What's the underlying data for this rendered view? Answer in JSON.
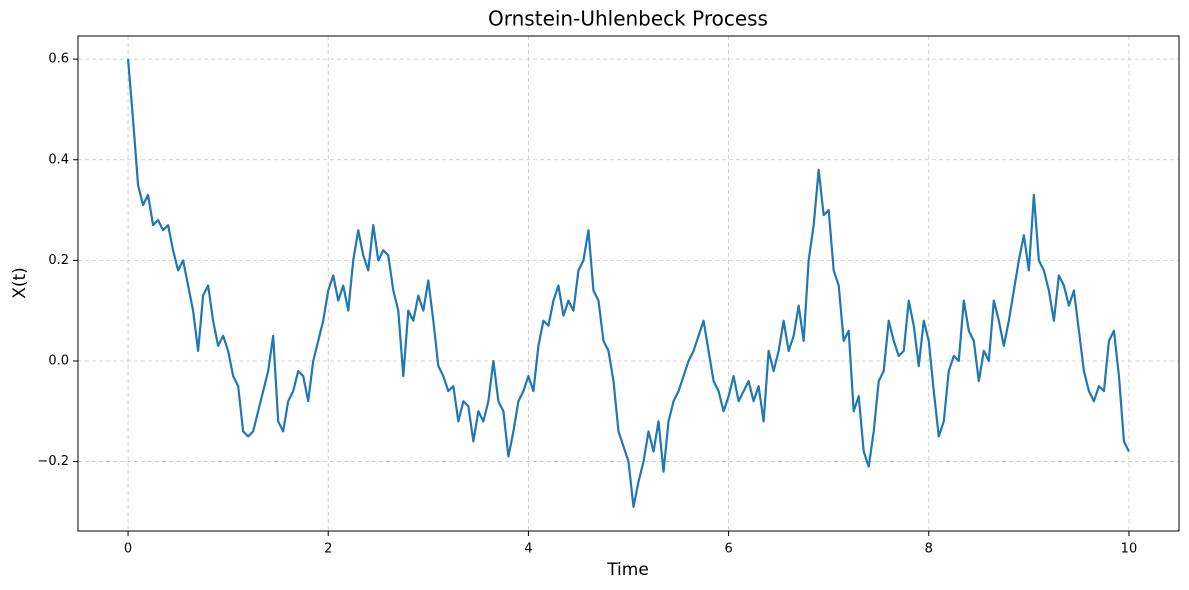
{
  "chart_data": {
    "type": "line",
    "title": "Ornstein-Uhlenbeck Process",
    "xlabel": "Time",
    "ylabel": "X(t)",
    "xlim": [
      -0.5,
      10.5
    ],
    "ylim": [
      -0.338,
      0.646
    ],
    "xticks": [
      0,
      2,
      4,
      6,
      8,
      10
    ],
    "yticks": [
      {
        "value": -0.2,
        "label": "−0.2"
      },
      {
        "value": 0,
        "label": "0.0"
      },
      0.2,
      0.4,
      0.6
    ],
    "grid": true,
    "x": [
      0,
      0.05,
      0.1,
      0.15,
      0.2,
      0.25,
      0.3,
      0.35,
      0.4,
      0.45,
      0.5,
      0.55,
      0.6,
      0.65,
      0.7,
      0.75,
      0.8,
      0.85,
      0.9,
      0.95,
      1,
      1.05,
      1.1,
      1.15,
      1.2,
      1.25,
      1.3,
      1.35,
      1.4,
      1.45,
      1.5,
      1.55,
      1.6,
      1.65,
      1.7,
      1.75,
      1.8,
      1.85,
      1.9,
      1.95,
      2,
      2.05,
      2.1,
      2.15,
      2.2,
      2.25,
      2.3,
      2.35,
      2.4,
      2.45,
      2.5,
      2.55,
      2.6,
      2.65,
      2.7,
      2.75,
      2.8,
      2.85,
      2.9,
      2.95,
      3,
      3.05,
      3.1,
      3.15,
      3.2,
      3.25,
      3.3,
      3.35,
      3.4,
      3.45,
      3.5,
      3.55,
      3.6,
      3.65,
      3.7,
      3.75,
      3.8,
      3.85,
      3.9,
      3.95,
      4,
      4.05,
      4.1,
      4.15,
      4.2,
      4.25,
      4.3,
      4.35,
      4.4,
      4.45,
      4.5,
      4.55,
      4.6,
      4.65,
      4.7,
      4.75,
      4.8,
      4.85,
      4.9,
      4.95,
      5,
      5.05,
      5.1,
      5.15,
      5.2,
      5.25,
      5.3,
      5.35,
      5.4,
      5.45,
      5.5,
      5.55,
      5.6,
      5.65,
      5.7,
      5.75,
      5.8,
      5.85,
      5.9,
      5.95,
      6,
      6.05,
      6.1,
      6.15,
      6.2,
      6.25,
      6.3,
      6.35,
      6.4,
      6.45,
      6.5,
      6.55,
      6.6,
      6.65,
      6.7,
      6.75,
      6.8,
      6.85,
      6.9,
      6.95,
      7,
      7.05,
      7.1,
      7.15,
      7.2,
      7.25,
      7.3,
      7.35,
      7.4,
      7.45,
      7.5,
      7.55,
      7.6,
      7.65,
      7.7,
      7.75,
      7.8,
      7.85,
      7.9,
      7.95,
      8,
      8.05,
      8.1,
      8.15,
      8.2,
      8.25,
      8.3,
      8.35,
      8.4,
      8.45,
      8.5,
      8.55,
      8.6,
      8.65,
      8.7,
      8.75,
      8.8,
      8.85,
      8.9,
      8.95,
      9,
      9.05,
      9.1,
      9.15,
      9.2,
      9.25,
      9.3,
      9.35,
      9.4,
      9.45,
      9.5,
      9.55,
      9.6,
      9.65,
      9.7,
      9.75,
      9.8,
      9.85,
      9.9,
      9.95,
      10
    ],
    "series": [
      {
        "color": "#1f77b4",
        "values": [
          0.6,
          0.48,
          0.35,
          0.31,
          0.33,
          0.27,
          0.28,
          0.26,
          0.27,
          0.22,
          0.18,
          0.2,
          0.15,
          0.1,
          0.02,
          0.13,
          0.15,
          0.08,
          0.03,
          0.05,
          0.02,
          -0.03,
          -0.05,
          -0.14,
          -0.15,
          -0.14,
          -0.1,
          -0.06,
          -0.02,
          0.05,
          -0.12,
          -0.14,
          -0.08,
          -0.06,
          -0.02,
          -0.03,
          -0.08,
          0,
          0.04,
          0.08,
          0.14,
          0.17,
          0.12,
          0.15,
          0.1,
          0.2,
          0.26,
          0.21,
          0.18,
          0.27,
          0.2,
          0.22,
          0.21,
          0.14,
          0.1,
          -0.03,
          0.1,
          0.08,
          0.13,
          0.1,
          0.16,
          0.08,
          -0.01,
          -0.03,
          -0.06,
          -0.05,
          -0.12,
          -0.08,
          -0.09,
          -0.16,
          -0.1,
          -0.12,
          -0.08,
          0,
          -0.08,
          -0.1,
          -0.19,
          -0.14,
          -0.08,
          -0.06,
          -0.03,
          -0.06,
          0.03,
          0.08,
          0.07,
          0.12,
          0.15,
          0.09,
          0.12,
          0.1,
          0.18,
          0.2,
          0.26,
          0.14,
          0.12,
          0.04,
          0.02,
          -0.04,
          -0.14,
          -0.17,
          -0.2,
          -0.29,
          -0.24,
          -0.2,
          -0.14,
          -0.18,
          -0.12,
          -0.22,
          -0.12,
          -0.08,
          -0.06,
          -0.03,
          0,
          0.02,
          0.05,
          0.08,
          0.02,
          -0.04,
          -0.06,
          -0.1,
          -0.07,
          -0.03,
          -0.08,
          -0.06,
          -0.04,
          -0.08,
          -0.05,
          -0.12,
          0.02,
          -0.02,
          0.02,
          0.08,
          0.02,
          0.05,
          0.11,
          0.04,
          0.2,
          0.27,
          0.38,
          0.29,
          0.3,
          0.18,
          0.15,
          0.04,
          0.06,
          -0.1,
          -0.07,
          -0.18,
          -0.21,
          -0.14,
          -0.04,
          -0.02,
          0.08,
          0.04,
          0.01,
          0.02,
          0.12,
          0.07,
          -0.01,
          0.08,
          0.04,
          -0.06,
          -0.15,
          -0.12,
          -0.02,
          0.01,
          0,
          0.12,
          0.06,
          0.04,
          -0.04,
          0.02,
          0,
          0.12,
          0.08,
          0.03,
          0.08,
          0.14,
          0.2,
          0.25,
          0.18,
          0.33,
          0.2,
          0.18,
          0.14,
          0.08,
          0.17,
          0.15,
          0.11,
          0.14,
          0.06,
          -0.02,
          -0.06,
          -0.08,
          -0.05,
          -0.06,
          0.04,
          0.06,
          -0.03,
          -0.16,
          -0.18
        ]
      }
    ]
  }
}
